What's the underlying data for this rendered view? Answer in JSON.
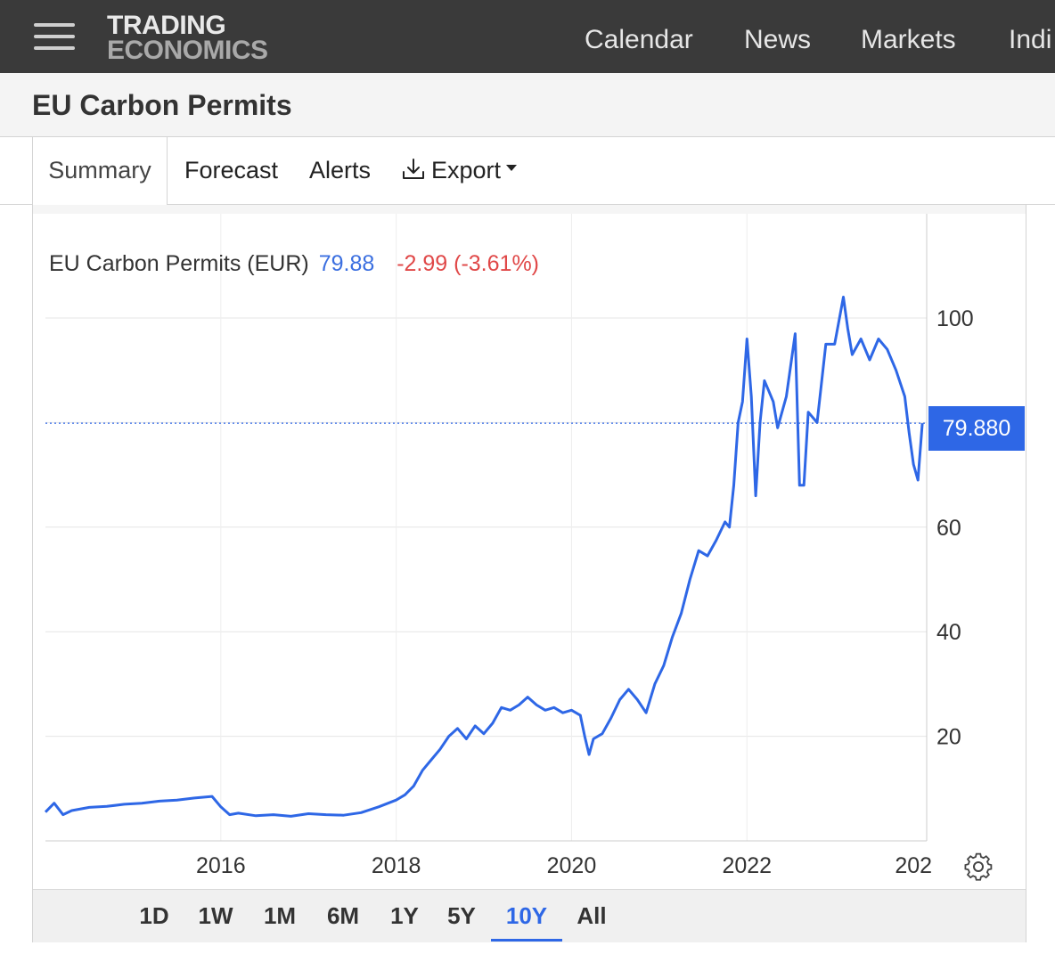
{
  "nav": {
    "logo_line1": "TRADING",
    "logo_line2": "ECONOMICS",
    "items": [
      "Calendar",
      "News",
      "Markets",
      "Indi"
    ]
  },
  "page": {
    "title": "EU Carbon Permits"
  },
  "tabs": [
    {
      "label": "Summary",
      "active": true
    },
    {
      "label": "Forecast",
      "active": false
    },
    {
      "label": "Alerts",
      "active": false
    },
    {
      "label": "Export",
      "active": false,
      "icon": "download-icon",
      "dropdown": true
    }
  ],
  "legend": {
    "name": "EU Carbon Permits (EUR)",
    "value": "79.88",
    "change": "-2.99 (-3.61%)"
  },
  "price_badge": "79.880",
  "colors": {
    "line": "#2e67e6",
    "up_value": "#3b6fe0",
    "negative": "#e04848",
    "accent": "#2e67e6"
  },
  "range_buttons": [
    {
      "label": "1D",
      "active": false
    },
    {
      "label": "1W",
      "active": false
    },
    {
      "label": "1M",
      "active": false
    },
    {
      "label": "6M",
      "active": false
    },
    {
      "label": "1Y",
      "active": false
    },
    {
      "label": "5Y",
      "active": false
    },
    {
      "label": "10Y",
      "active": true
    },
    {
      "label": "All",
      "active": false
    }
  ],
  "settings_icon": "gear-icon",
  "chart_data": {
    "type": "line",
    "title": "EU Carbon Permits (EUR)",
    "xlabel": "",
    "ylabel": "",
    "x_tick_labels": [
      "2016",
      "2018",
      "2020",
      "2022",
      "202"
    ],
    "y_tick_labels": [
      "20",
      "40",
      "60",
      "100"
    ],
    "ylim": [
      0,
      110
    ],
    "xlim": [
      2014.0,
      2024.05
    ],
    "grid": true,
    "last_value": 79.88,
    "series": [
      {
        "x": [
          2014.0,
          2014.1,
          2014.2,
          2014.3,
          2014.5,
          2014.7,
          2014.9,
          2015.1,
          2015.3,
          2015.5,
          2015.7,
          2015.9,
          2016.0,
          2016.1,
          2016.2,
          2016.4,
          2016.6,
          2016.8,
          2017.0,
          2017.2,
          2017.4,
          2017.6,
          2017.8,
          2018.0,
          2018.1,
          2018.2,
          2018.3,
          2018.4,
          2018.5,
          2018.6,
          2018.7,
          2018.8,
          2018.9,
          2019.0,
          2019.1,
          2019.2,
          2019.3,
          2019.4,
          2019.5,
          2019.6,
          2019.7,
          2019.8,
          2019.9,
          2020.0,
          2020.1,
          2020.15,
          2020.2,
          2020.25,
          2020.35,
          2020.45,
          2020.55,
          2020.65,
          2020.75,
          2020.85,
          2020.95,
          2021.05,
          2021.15,
          2021.25,
          2021.35,
          2021.45,
          2021.55,
          2021.65,
          2021.75,
          2021.8,
          2021.85,
          2021.9,
          2021.95,
          2022.0,
          2022.05,
          2022.1,
          2022.15,
          2022.2,
          2022.25,
          2022.3,
          2022.35,
          2022.45,
          2022.55,
          2022.6,
          2022.65,
          2022.7,
          2022.8,
          2022.9,
          2023.0,
          2023.1,
          2023.15,
          2023.2,
          2023.3,
          2023.4,
          2023.5,
          2023.6,
          2023.7,
          2023.8,
          2023.85,
          2023.9,
          2023.95,
          2024.0
        ],
        "values": [
          5.5,
          7.2,
          5.0,
          5.8,
          6.4,
          6.6,
          7.0,
          7.2,
          7.6,
          7.8,
          8.2,
          8.5,
          6.5,
          5.0,
          5.3,
          4.8,
          5.0,
          4.7,
          5.2,
          5.0,
          4.9,
          5.4,
          6.5,
          7.8,
          8.8,
          10.5,
          13.5,
          15.5,
          17.5,
          20.0,
          21.5,
          19.5,
          22.0,
          20.5,
          22.5,
          25.5,
          25.0,
          26.0,
          27.5,
          26.0,
          25.0,
          25.5,
          24.5,
          25.0,
          24.0,
          20.0,
          16.5,
          19.5,
          20.5,
          23.5,
          27.0,
          29.0,
          27.0,
          24.5,
          30.0,
          33.5,
          39.0,
          43.5,
          50.0,
          55.5,
          54.5,
          57.5,
          61.0,
          60.0,
          68.0,
          80.0,
          84.0,
          96.0,
          85.0,
          66.0,
          80.0,
          88.0,
          86.0,
          84.0,
          79.0,
          85.0,
          97.0,
          68.0,
          68.0,
          82.0,
          80.0,
          95.0,
          95.0,
          104.0,
          98.0,
          93.0,
          96.0,
          92.0,
          96.0,
          94.0,
          90.0,
          85.0,
          78.0,
          72.0,
          69.0,
          79.88
        ]
      }
    ]
  }
}
